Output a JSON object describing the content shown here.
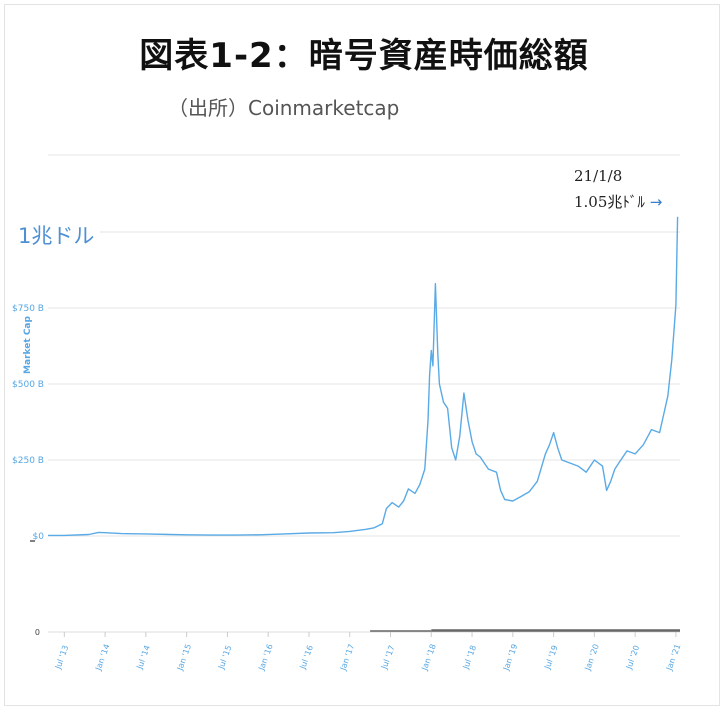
{
  "title": "図表1-2：暗号資産時価総額",
  "source": "（出所）Coinmarketcap",
  "annotation": {
    "date": "21/1/8",
    "value": "1.05兆ﾄﾞﾙ",
    "arrow": "→"
  },
  "highlight_label": "1兆ドル",
  "colors": {
    "line": "#5aaae6",
    "gridline": "#e4e4e4",
    "tick_text": "#57a7e3",
    "volume": "#666666",
    "label_blue": "#4f8fd4"
  },
  "chart_data": {
    "type": "line",
    "title": "図表1-2：暗号資産時価総額",
    "ylabel": "Market Cap",
    "ylim": [
      0,
      1000
    ],
    "y_unit": "$B",
    "y_ticks": [
      "$0",
      "$250 B",
      "$500 B",
      "$750 B"
    ],
    "y_tick_values": [
      0,
      250,
      500,
      750
    ],
    "x_ticks": [
      "Jul '13",
      "Jan '14",
      "Jul '14",
      "Jan '15",
      "Jul '15",
      "Jan '16",
      "Jul '16",
      "Jan '17",
      "Jul '17",
      "Jan '18",
      "Jul '18",
      "Jan '19",
      "Jul '19",
      "Jan '20",
      "Jul '20",
      "Jan '21"
    ],
    "x_tick_values": [
      2013.5,
      2014.0,
      2014.5,
      2015.0,
      2015.5,
      2016.0,
      2016.5,
      2017.0,
      2017.5,
      2018.0,
      2018.5,
      2019.0,
      2019.5,
      2020.0,
      2020.5,
      2021.0
    ],
    "xlim": [
      2013.3,
      2021.05
    ],
    "grid": true,
    "series": [
      {
        "x": [
          2013.3,
          2013.5,
          2013.8,
          2013.92,
          2014.0,
          2014.2,
          2014.5,
          2014.8,
          2015.0,
          2015.3,
          2015.6,
          2015.9,
          2016.2,
          2016.5,
          2016.8,
          2017.0,
          2017.2,
          2017.3,
          2017.4,
          2017.45,
          2017.52,
          2017.6,
          2017.66,
          2017.72,
          2017.8,
          2017.86,
          2017.92,
          2017.96,
          2017.98,
          2018.0,
          2018.02,
          2018.05,
          2018.08,
          2018.1,
          2018.15,
          2018.2,
          2018.25,
          2018.3,
          2018.35,
          2018.4,
          2018.45,
          2018.5,
          2018.55,
          2018.6,
          2018.7,
          2018.8,
          2018.85,
          2018.9,
          2019.0,
          2019.1,
          2019.2,
          2019.3,
          2019.4,
          2019.45,
          2019.5,
          2019.55,
          2019.6,
          2019.7,
          2019.8,
          2019.9,
          2020.0,
          2020.1,
          2020.15,
          2020.2,
          2020.25,
          2020.3,
          2020.4,
          2020.5,
          2020.6,
          2020.7,
          2020.8,
          2020.85,
          2020.9,
          2020.95,
          2021.0,
          2021.02
        ],
        "y": [
          2,
          2,
          5,
          12,
          11,
          8,
          7,
          5,
          4,
          3,
          3,
          4,
          7,
          10,
          11,
          15,
          22,
          27,
          40,
          90,
          110,
          95,
          115,
          155,
          140,
          170,
          220,
          380,
          530,
          610,
          560,
          830,
          600,
          500,
          440,
          420,
          290,
          250,
          330,
          470,
          380,
          310,
          270,
          260,
          220,
          210,
          150,
          120,
          115,
          130,
          145,
          180,
          270,
          300,
          340,
          290,
          250,
          240,
          230,
          210,
          250,
          230,
          150,
          180,
          220,
          240,
          280,
          270,
          300,
          350,
          340,
          400,
          460,
          580,
          760,
          1050
        ]
      }
    ]
  }
}
